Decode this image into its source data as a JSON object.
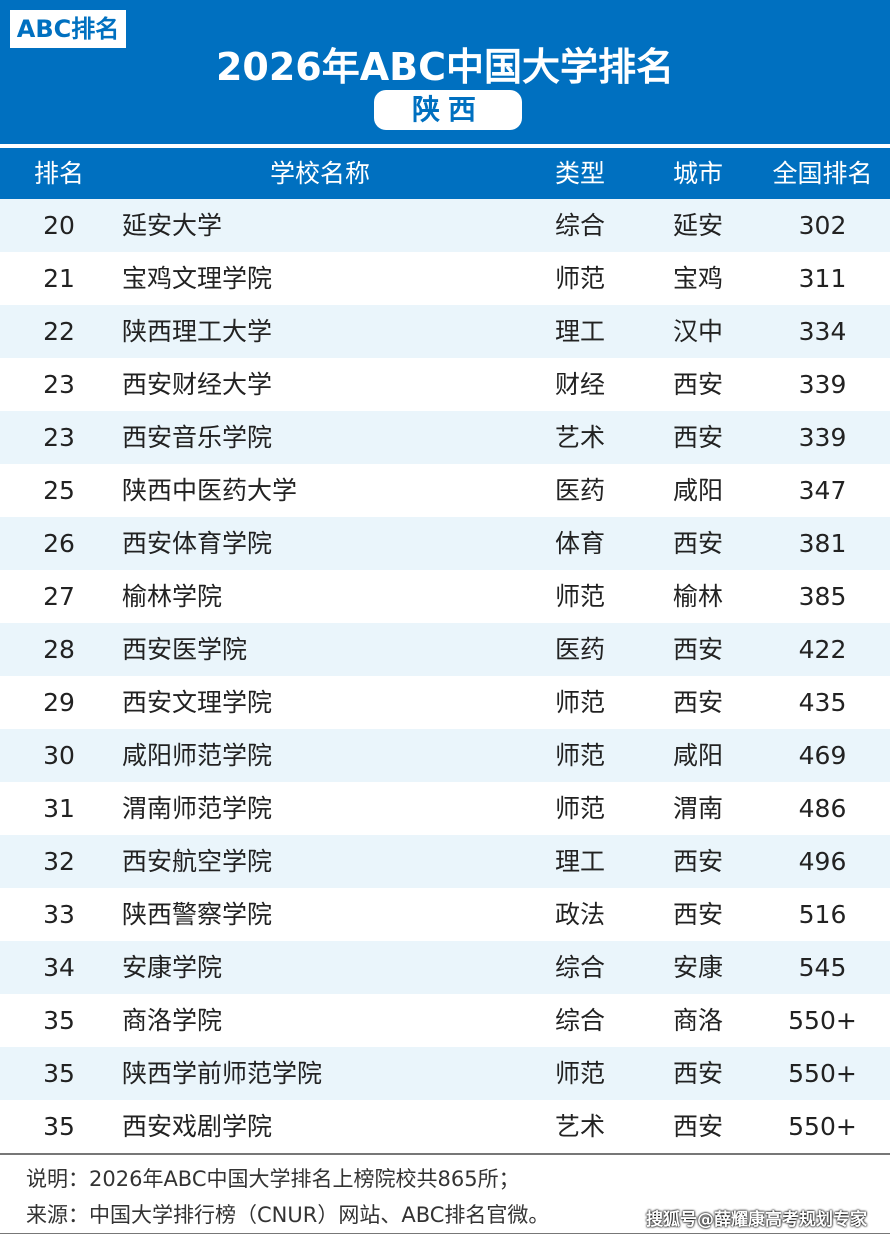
{
  "header": {
    "logo": "ABC排名",
    "title": "2026年ABC中国大学排名",
    "province": "陕西"
  },
  "columns": [
    "排名",
    "学校名称",
    "类型",
    "城市",
    "全国排名"
  ],
  "rows": [
    [
      "20",
      "延安大学",
      "综合",
      "延安",
      "302"
    ],
    [
      "21",
      "宝鸡文理学院",
      "师范",
      "宝鸡",
      "311"
    ],
    [
      "22",
      "陕西理工大学",
      "理工",
      "汉中",
      "334"
    ],
    [
      "23",
      "西安财经大学",
      "财经",
      "西安",
      "339"
    ],
    [
      "23",
      "西安音乐学院",
      "艺术",
      "西安",
      "339"
    ],
    [
      "25",
      "陕西中医药大学",
      "医药",
      "咸阳",
      "347"
    ],
    [
      "26",
      "西安体育学院",
      "体育",
      "西安",
      "381"
    ],
    [
      "27",
      "榆林学院",
      "师范",
      "榆林",
      "385"
    ],
    [
      "28",
      "西安医学院",
      "医药",
      "西安",
      "422"
    ],
    [
      "29",
      "西安文理学院",
      "师范",
      "西安",
      "435"
    ],
    [
      "30",
      "咸阳师范学院",
      "师范",
      "咸阳",
      "469"
    ],
    [
      "31",
      "渭南师范学院",
      "师范",
      "渭南",
      "486"
    ],
    [
      "32",
      "西安航空学院",
      "理工",
      "西安",
      "496"
    ],
    [
      "33",
      "陕西警察学院",
      "政法",
      "西安",
      "516"
    ],
    [
      "34",
      "安康学院",
      "综合",
      "安康",
      "545"
    ],
    [
      "35",
      "商洛学院",
      "综合",
      "商洛",
      "550+"
    ],
    [
      "35",
      "陕西学前师范学院",
      "师范",
      "西安",
      "550+"
    ],
    [
      "35",
      "西安戏剧学院",
      "艺术",
      "西安",
      "550+"
    ]
  ],
  "footer": {
    "note": "说明：2026年ABC中国大学排名上榜院校共865所；",
    "source": "来源：中国大学排行榜（CNUR）网站、ABC排名官微。",
    "watermark": "搜狐号@薛耀康高考规划专家"
  },
  "colors": {
    "brand": "#0070c0",
    "row_alt": "#eaf5fb"
  }
}
